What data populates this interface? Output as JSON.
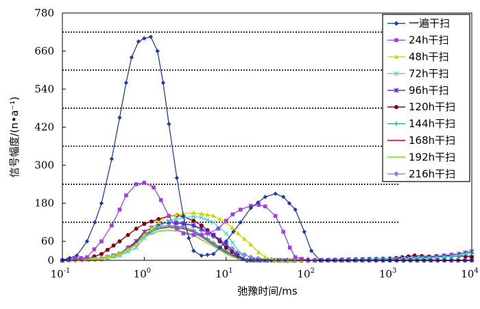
{
  "chart_data": {
    "type": "line",
    "xlabel": "弛豫时间/ms",
    "ylabel": "信号幅度/(n•a⁻¹)",
    "x_scale": "log",
    "xlim": [
      0.1,
      10000
    ],
    "ylim": [
      0,
      780
    ],
    "x_ticks": [
      {
        "value": 0.1,
        "base": "10",
        "exp": "-1"
      },
      {
        "value": 1,
        "base": "10",
        "exp": "0"
      },
      {
        "value": 10,
        "base": "10",
        "exp": "1"
      },
      {
        "value": 100,
        "base": "10",
        "exp": "2"
      },
      {
        "value": 1000,
        "base": "10",
        "exp": "3"
      },
      {
        "value": 10000,
        "base": "10",
        "exp": "4"
      }
    ],
    "y_ticks": [
      0,
      60,
      180,
      300,
      420,
      540,
      660,
      780
    ],
    "y_tick_labels": [
      "0",
      "60",
      "180",
      "300",
      "420",
      "540",
      "660",
      "780"
    ],
    "gridlines_y": [
      120,
      240,
      360,
      480,
      600,
      720
    ],
    "legend_position": "top-right",
    "series": [
      {
        "name": "一遍干扫",
        "color": "#1f3fa0",
        "marker": "diamond",
        "points": [
          [
            0.1,
            0
          ],
          [
            0.15,
            15
          ],
          [
            0.2,
            60
          ],
          [
            0.25,
            120
          ],
          [
            0.3,
            180
          ],
          [
            0.4,
            320
          ],
          [
            0.5,
            450
          ],
          [
            0.6,
            560
          ],
          [
            0.7,
            640
          ],
          [
            0.85,
            690
          ],
          [
            1.0,
            700
          ],
          [
            1.2,
            705
          ],
          [
            1.45,
            660
          ],
          [
            1.7,
            560
          ],
          [
            2.0,
            430
          ],
          [
            2.5,
            260
          ],
          [
            3.0,
            140
          ],
          [
            3.5,
            70
          ],
          [
            4.0,
            30
          ],
          [
            5.0,
            15
          ],
          [
            7.0,
            20
          ],
          [
            10,
            60
          ],
          [
            15,
            120
          ],
          [
            20,
            165
          ],
          [
            30,
            200
          ],
          [
            40,
            210
          ],
          [
            50,
            200
          ],
          [
            70,
            160
          ],
          [
            90,
            90
          ],
          [
            110,
            30
          ],
          [
            140,
            0
          ],
          [
            300,
            0
          ],
          [
            1000,
            0
          ],
          [
            10000,
            0
          ]
        ]
      },
      {
        "name": "24h干扫",
        "color": "#a040e0",
        "marker": "square",
        "points": [
          [
            0.1,
            0
          ],
          [
            0.2,
            10
          ],
          [
            0.3,
            60
          ],
          [
            0.4,
            110
          ],
          [
            0.5,
            160
          ],
          [
            0.6,
            205
          ],
          [
            0.8,
            240
          ],
          [
            1.0,
            245
          ],
          [
            1.3,
            230
          ],
          [
            1.6,
            190
          ],
          [
            2.0,
            140
          ],
          [
            2.5,
            100
          ],
          [
            3.0,
            85
          ],
          [
            4.0,
            80
          ],
          [
            5.0,
            80
          ],
          [
            6.0,
            85
          ],
          [
            8.0,
            100
          ],
          [
            10,
            125
          ],
          [
            12,
            145
          ],
          [
            15,
            160
          ],
          [
            20,
            172
          ],
          [
            25,
            175
          ],
          [
            30,
            170
          ],
          [
            40,
            140
          ],
          [
            50,
            90
          ],
          [
            60,
            40
          ],
          [
            70,
            10
          ],
          [
            100,
            0
          ],
          [
            1000,
            0
          ],
          [
            10000,
            0
          ]
        ]
      },
      {
        "name": "48h干扫",
        "color": "#ccd400",
        "marker": "triangle",
        "points": [
          [
            0.1,
            0
          ],
          [
            0.3,
            5
          ],
          [
            0.5,
            20
          ],
          [
            0.8,
            50
          ],
          [
            1.0,
            80
          ],
          [
            1.5,
            120
          ],
          [
            2.0,
            140
          ],
          [
            3.0,
            148
          ],
          [
            4.0,
            150
          ],
          [
            5.0,
            147
          ],
          [
            7.0,
            140
          ],
          [
            10,
            120
          ],
          [
            14,
            85
          ],
          [
            20,
            50
          ],
          [
            25,
            25
          ],
          [
            30,
            10
          ],
          [
            40,
            0
          ],
          [
            100,
            0
          ],
          [
            1000,
            0
          ],
          [
            10000,
            0
          ]
        ]
      },
      {
        "name": "72h干扫",
        "color": "#40d8c8",
        "marker": "cross",
        "points": [
          [
            0.1,
            0
          ],
          [
            0.3,
            5
          ],
          [
            0.5,
            15
          ],
          [
            0.8,
            40
          ],
          [
            1.0,
            70
          ],
          [
            1.5,
            105
          ],
          [
            2.0,
            125
          ],
          [
            3.0,
            135
          ],
          [
            4.0,
            138
          ],
          [
            5.0,
            135
          ],
          [
            7.0,
            120
          ],
          [
            10,
            85
          ],
          [
            12,
            55
          ],
          [
            15,
            20
          ],
          [
            18,
            0
          ],
          [
            100,
            0
          ],
          [
            1000,
            4
          ],
          [
            3000,
            8
          ],
          [
            7000,
            15
          ],
          [
            10000,
            25
          ]
        ]
      },
      {
        "name": "96h干扫",
        "color": "#6020d0",
        "marker": "star",
        "points": [
          [
            0.1,
            0
          ],
          [
            0.3,
            5
          ],
          [
            0.5,
            20
          ],
          [
            0.8,
            60
          ],
          [
            1.0,
            90
          ],
          [
            1.5,
            115
          ],
          [
            2.0,
            120
          ],
          [
            3.0,
            115
          ],
          [
            4.0,
            110
          ],
          [
            5.0,
            100
          ],
          [
            7.0,
            80
          ],
          [
            10,
            50
          ],
          [
            13,
            20
          ],
          [
            16,
            5
          ],
          [
            20,
            0
          ],
          [
            100,
            0
          ],
          [
            1000,
            5
          ],
          [
            3000,
            10
          ],
          [
            7000,
            20
          ],
          [
            10000,
            28
          ]
        ]
      },
      {
        "name": "120h干扫",
        "color": "#800010",
        "marker": "circle",
        "points": [
          [
            0.1,
            0
          ],
          [
            0.2,
            5
          ],
          [
            0.3,
            20
          ],
          [
            0.5,
            60
          ],
          [
            0.8,
            100
          ],
          [
            1.0,
            115
          ],
          [
            1.5,
            130
          ],
          [
            2.0,
            140
          ],
          [
            2.5,
            142
          ],
          [
            3.0,
            138
          ],
          [
            4.0,
            125
          ],
          [
            5.0,
            110
          ],
          [
            7.0,
            80
          ],
          [
            10,
            40
          ],
          [
            14,
            15
          ],
          [
            18,
            0
          ],
          [
            100,
            0
          ],
          [
            1000,
            5
          ],
          [
            2000,
            15
          ],
          [
            3000,
            12
          ],
          [
            7000,
            15
          ],
          [
            10000,
            10
          ]
        ]
      },
      {
        "name": "144h干扫",
        "color": "#20a080",
        "marker": "plus",
        "points": [
          [
            0.1,
            0
          ],
          [
            0.3,
            5
          ],
          [
            0.5,
            20
          ],
          [
            0.8,
            60
          ],
          [
            1.0,
            85
          ],
          [
            1.5,
            105
          ],
          [
            2.0,
            110
          ],
          [
            3.0,
            105
          ],
          [
            4.0,
            95
          ],
          [
            5.0,
            80
          ],
          [
            7.0,
            55
          ],
          [
            10,
            30
          ],
          [
            14,
            10
          ],
          [
            18,
            0
          ],
          [
            100,
            0
          ],
          [
            1000,
            3
          ],
          [
            10000,
            15
          ]
        ]
      },
      {
        "name": "168h干扫",
        "color": "#c04080",
        "marker": "none",
        "points": [
          [
            0.1,
            0
          ],
          [
            0.3,
            5
          ],
          [
            0.5,
            20
          ],
          [
            0.8,
            55
          ],
          [
            1.0,
            80
          ],
          [
            1.5,
            100
          ],
          [
            2.0,
            105
          ],
          [
            3.0,
            100
          ],
          [
            4.0,
            90
          ],
          [
            5.0,
            75
          ],
          [
            7.0,
            50
          ],
          [
            10,
            25
          ],
          [
            14,
            8
          ],
          [
            18,
            0
          ],
          [
            100,
            0
          ],
          [
            10000,
            0
          ]
        ]
      },
      {
        "name": "192h干扫",
        "color": "#90e060",
        "marker": "none",
        "points": [
          [
            0.1,
            0
          ],
          [
            0.3,
            5
          ],
          [
            0.5,
            15
          ],
          [
            0.8,
            50
          ],
          [
            1.0,
            75
          ],
          [
            1.5,
            92
          ],
          [
            2.0,
            95
          ],
          [
            3.0,
            90
          ],
          [
            4.0,
            80
          ],
          [
            5.0,
            65
          ],
          [
            7.0,
            45
          ],
          [
            10,
            20
          ],
          [
            14,
            5
          ],
          [
            18,
            0
          ],
          [
            100,
            0
          ],
          [
            10000,
            0
          ]
        ]
      },
      {
        "name": "216h干扫",
        "color": "#8888dd",
        "marker": "diamond-large",
        "points": [
          [
            0.1,
            0
          ],
          [
            0.3,
            5
          ],
          [
            0.5,
            20
          ],
          [
            0.8,
            50
          ],
          [
            1.0,
            80
          ],
          [
            1.5,
            110
          ],
          [
            2.0,
            120
          ],
          [
            3.0,
            118
          ],
          [
            4.0,
            110
          ],
          [
            5.0,
            95
          ],
          [
            7.0,
            75
          ],
          [
            10,
            50
          ],
          [
            14,
            25
          ],
          [
            20,
            10
          ],
          [
            30,
            2
          ],
          [
            50,
            0
          ],
          [
            100,
            0
          ],
          [
            10000,
            0
          ]
        ]
      }
    ]
  }
}
